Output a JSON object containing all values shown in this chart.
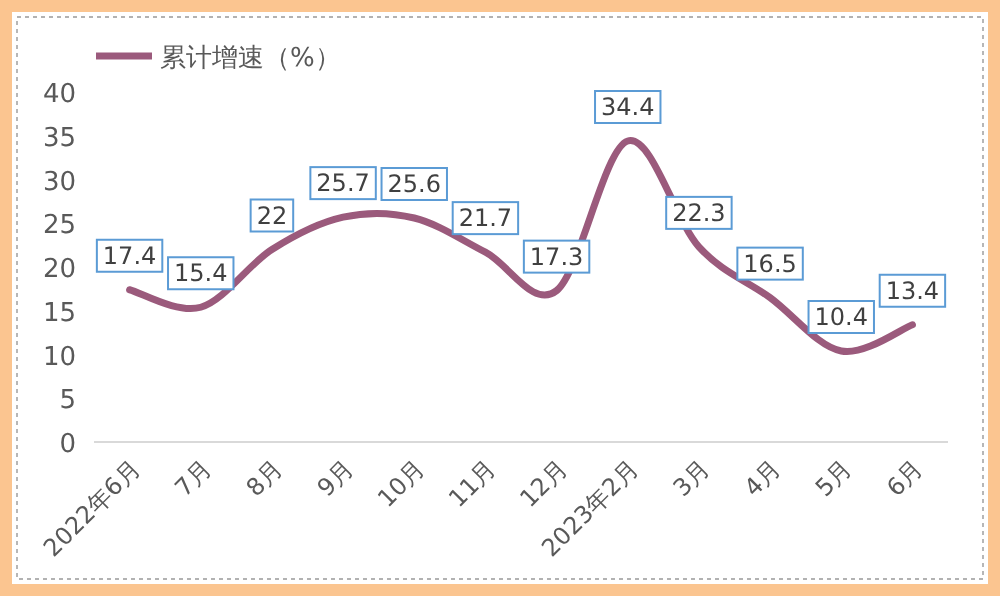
{
  "chart_data": {
    "type": "line",
    "categories": [
      "2022年6月",
      "7月",
      "8月",
      "9月",
      "10月",
      "11月",
      "12月",
      "2023年2月",
      "3月",
      "4月",
      "5月",
      "6月"
    ],
    "series": [
      {
        "name": "累计增速（%）",
        "color": "#9b5a7c",
        "values": [
          17.4,
          15.4,
          22,
          25.7,
          25.6,
          21.7,
          17.3,
          34.4,
          22.3,
          16.5,
          10.4,
          13.4
        ]
      }
    ],
    "ylim": [
      0,
      40
    ],
    "yticks": [
      0,
      5,
      10,
      15,
      20,
      25,
      30,
      35,
      40
    ],
    "data_labels": true,
    "legend": "top left",
    "grid": false,
    "marker": "none",
    "line_style": "solid"
  }
}
